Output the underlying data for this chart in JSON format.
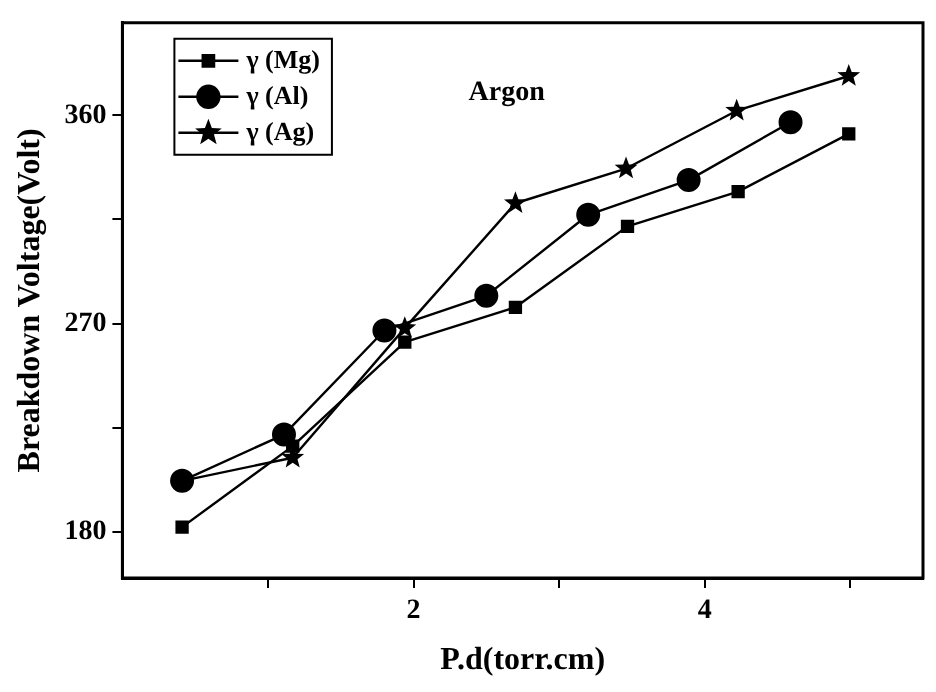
{
  "chart_data": {
    "type": "line",
    "xlabel": "P.d(torr.cm)",
    "ylabel": "Breakdown Voltage(Volt)",
    "annotations": [
      "Argon"
    ],
    "xlim": [
      0,
      5.5
    ],
    "xticks": [
      {
        "value": 1,
        "label": null
      },
      2,
      {
        "value": 3,
        "label": null
      },
      4,
      {
        "value": 5,
        "label": null
      }
    ],
    "ylim": [
      160,
      400
    ],
    "yticks": [
      180,
      {
        "value": 225,
        "label": null
      },
      270,
      {
        "value": 315,
        "label": null
      },
      360
    ],
    "grid": false,
    "legend": "top left",
    "line_style": "solid",
    "series": [
      {
        "name": "γ (Mg)",
        "color": "#000000",
        "marker": "square",
        "x": [
          0.41,
          1.17,
          1.94,
          2.7,
          3.47,
          4.23,
          4.99
        ],
        "values": [
          182,
          217,
          262,
          277,
          312,
          327,
          352
        ]
      },
      {
        "name": "γ (Al)",
        "color": "#000000",
        "marker": "circle",
        "x": [
          0.41,
          1.11,
          1.8,
          2.5,
          3.2,
          3.89,
          4.59
        ],
        "values": [
          202,
          222,
          267,
          282,
          317,
          332,
          357
        ]
      },
      {
        "name": "γ (Ag)",
        "color": "#000000",
        "marker": "star",
        "x": [
          0.41,
          1.17,
          1.94,
          2.7,
          3.46,
          4.22,
          4.99
        ],
        "values": [
          202,
          212,
          268,
          322,
          337,
          362,
          377
        ]
      }
    ]
  }
}
